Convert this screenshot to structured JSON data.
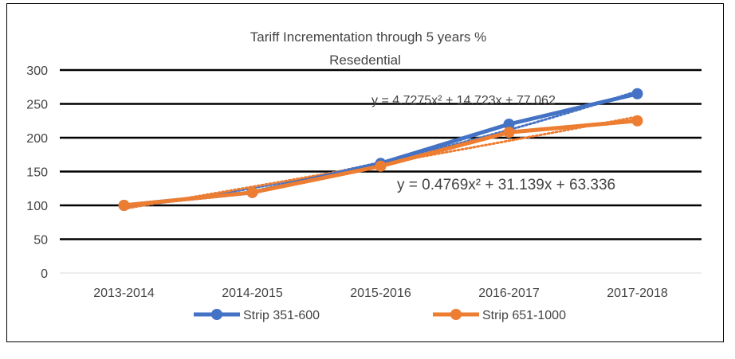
{
  "chart_data": {
    "type": "line",
    "title": "Tariff Incrementation through 5 years %",
    "subtitle": "Resedential",
    "categories": [
      "2013-2014",
      "2014-2015",
      "2015-2016",
      "2016-2017",
      "2017-2018"
    ],
    "ylim": [
      0,
      300
    ],
    "yticks": [
      "0",
      "50",
      "100",
      "150",
      "200",
      "250",
      "300"
    ],
    "grid": true,
    "legend_position": "bottom",
    "series": [
      {
        "name": "Strip 351-600",
        "values": [
          100,
          119,
          162,
          220,
          265
        ],
        "color": "#4472C4",
        "trendline": {
          "type": "poly2",
          "equation": "y = 4.7275x² + 14.723x + 77.062",
          "coef": [
            4.7275,
            14.723,
            77.062
          ]
        }
      },
      {
        "name": "Strip 651-1000",
        "values": [
          100,
          119,
          158,
          208,
          225
        ],
        "color": "#ED7D31",
        "trendline": {
          "type": "poly2",
          "equation": "y = 0.4769x² + 31.139x + 63.336",
          "coef": [
            0.4769,
            31.139,
            63.336
          ]
        }
      }
    ]
  }
}
